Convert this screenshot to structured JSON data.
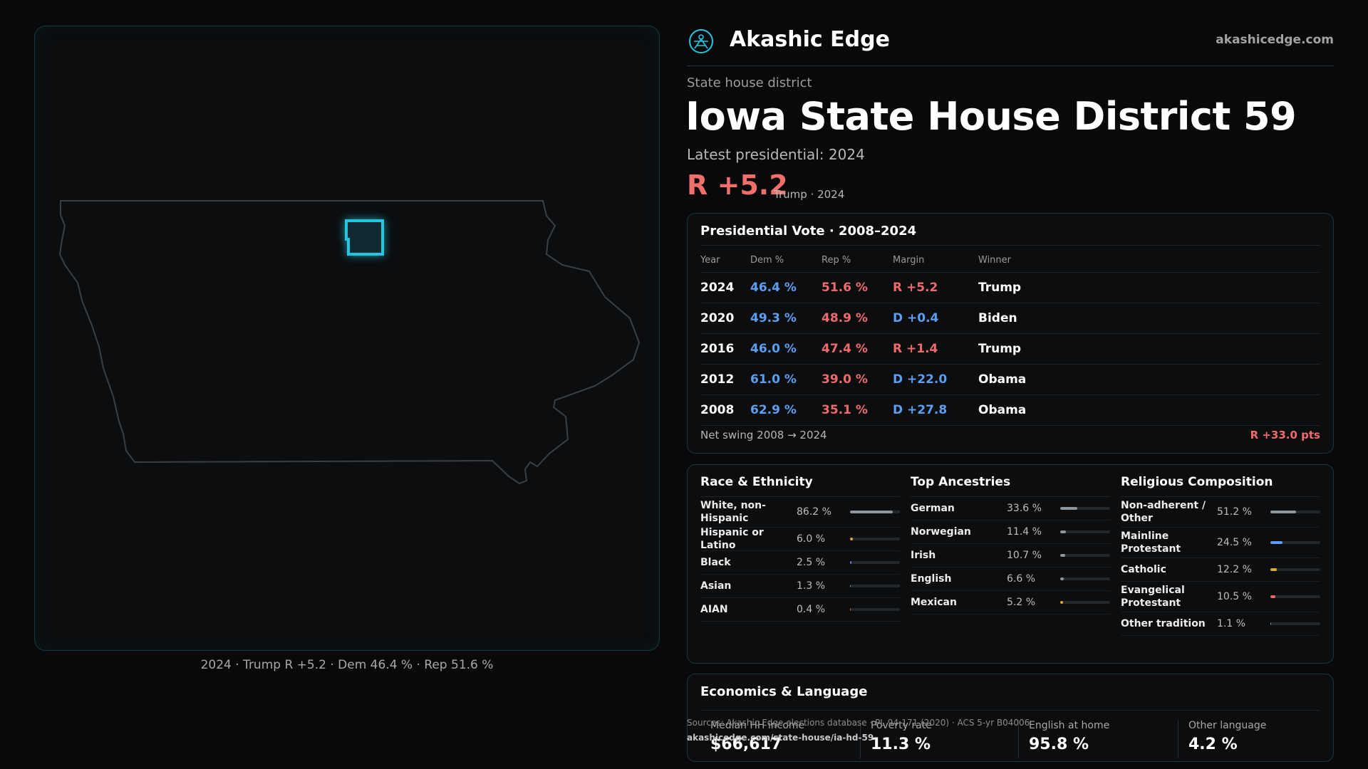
{
  "map": {
    "caption": "2024 · Trump R +5.2 · Dem 46.4 % · Rep 51.6 %"
  },
  "header": {
    "brand_name": "Akashic Edge",
    "brand_url": "akashicedge.com"
  },
  "district": {
    "kicker": "State house district",
    "title": "Iowa State House District 59",
    "latest": "Latest presidential: 2024",
    "margin": "R +5.2",
    "margin_sub": "Trump · 2024"
  },
  "presidential": {
    "title": "Presidential Vote · 2008–2024",
    "headers": [
      "Year",
      "Dem %",
      "Rep %",
      "Margin",
      "Winner"
    ],
    "rows": [
      {
        "year": "2024",
        "dem": "46.4 %",
        "rep": "51.6 %",
        "margin": "R +5.2",
        "winner": "Trump",
        "party": "rep"
      },
      {
        "year": "2020",
        "dem": "49.3 %",
        "rep": "48.9 %",
        "margin": "D +0.4",
        "winner": "Biden",
        "party": "dem"
      },
      {
        "year": "2016",
        "dem": "46.0 %",
        "rep": "47.4 %",
        "margin": "R +1.4",
        "winner": "Trump",
        "party": "rep"
      },
      {
        "year": "2012",
        "dem": "61.0 %",
        "rep": "39.0 %",
        "margin": "D +22.0",
        "winner": "Obama",
        "party": "dem"
      },
      {
        "year": "2008",
        "dem": "62.9 %",
        "rep": "35.1 %",
        "margin": "D +27.8",
        "winner": "Obama",
        "party": "dem"
      }
    ],
    "swing_label": "Net swing 2008 → 2024",
    "swing_value": "R +33.0 pts"
  },
  "race": {
    "title": "Race & Ethnicity",
    "rows": [
      {
        "label": "White, non-Hispanic",
        "value": "86.2 %",
        "pct": 86.2,
        "color": "#8e959c",
        "tall": true
      },
      {
        "label": "Hispanic or Latino",
        "value": "6.0 %",
        "pct": 6.0,
        "color": "#e0a92e"
      },
      {
        "label": "Black",
        "value": "2.5 %",
        "pct": 2.5,
        "color": "#6f7cf5"
      },
      {
        "label": "Asian",
        "value": "1.3 %",
        "pct": 1.3,
        "color": "#2fb58c"
      },
      {
        "label": "AIAN",
        "value": "0.4 %",
        "pct": 0.4,
        "color": "#e0673a"
      }
    ]
  },
  "ancestry": {
    "title": "Top Ancestries",
    "rows": [
      {
        "label": "German",
        "value": "33.6 %",
        "pct": 33.6,
        "color": "#8e959c"
      },
      {
        "label": "Norwegian",
        "value": "11.4 %",
        "pct": 11.4,
        "color": "#8e959c"
      },
      {
        "label": "Irish",
        "value": "10.7 %",
        "pct": 10.7,
        "color": "#8e959c"
      },
      {
        "label": "English",
        "value": "6.6 %",
        "pct": 6.6,
        "color": "#8e959c"
      },
      {
        "label": "Mexican",
        "value": "5.2 %",
        "pct": 5.2,
        "color": "#e0a92e"
      }
    ]
  },
  "religion": {
    "title": "Religious Composition",
    "rows": [
      {
        "label": "Non-adherent / Other",
        "value": "51.2 %",
        "pct": 51.2,
        "color": "#8e959c",
        "tall": true
      },
      {
        "label": "Mainline Protestant",
        "value": "24.5 %",
        "pct": 24.5,
        "color": "#5b9ef2",
        "tall": true
      },
      {
        "label": "Catholic",
        "value": "12.2 %",
        "pct": 12.2,
        "color": "#e0a92e"
      },
      {
        "label": "Evangelical Protestant",
        "value": "10.5 %",
        "pct": 10.5,
        "color": "#ef6b6b",
        "tall": true
      },
      {
        "label": "Other tradition",
        "value": "1.1 %",
        "pct": 1.1,
        "color": "#8e959c"
      }
    ]
  },
  "economics": {
    "title": "Economics & Language",
    "stats": [
      {
        "label": "Median HH income",
        "value": "$66,617"
      },
      {
        "label": "Poverty rate",
        "value": "11.3 %"
      },
      {
        "label": "English at home",
        "value": "95.8 %"
      },
      {
        "label": "Other language",
        "value": "4.2 %"
      }
    ]
  },
  "sources": {
    "line": "Sources: Akashic Edge elections database · PL 94-171 (2020) · ACS 5-yr B04006",
    "url": "akashicedge.com/state-house/ia-hd-59"
  },
  "colors": {
    "accent": "#22c6de",
    "dem": "#5b9ef2",
    "rep": "#ef6b6b"
  }
}
